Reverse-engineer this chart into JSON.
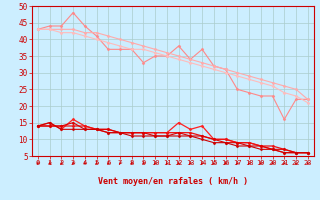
{
  "title": "",
  "xlabel": "Vent moyen/en rafales ( km/h )",
  "ylabel": "",
  "background_color": "#cceeff",
  "grid_color": "#aacccc",
  "xlim": [
    -0.5,
    23.5
  ],
  "ylim": [
    5,
    50
  ],
  "yticks": [
    5,
    10,
    15,
    20,
    25,
    30,
    35,
    40,
    45,
    50
  ],
  "xticks": [
    0,
    1,
    2,
    3,
    4,
    5,
    6,
    7,
    8,
    9,
    10,
    11,
    12,
    13,
    14,
    15,
    16,
    17,
    18,
    19,
    20,
    21,
    22,
    23
  ],
  "lines_light": [
    {
      "x": [
        0,
        1,
        2,
        3,
        4,
        5,
        6,
        7,
        8,
        9,
        10,
        11,
        12,
        13,
        14,
        15,
        16,
        17,
        18,
        19,
        20,
        21,
        22,
        23
      ],
      "y": [
        43,
        44,
        44,
        48,
        44,
        41,
        37,
        37,
        37,
        33,
        35,
        35,
        38,
        34,
        37,
        32,
        31,
        25,
        24,
        23,
        23,
        16,
        22,
        22
      ],
      "color": "#ff8888",
      "lw": 0.8
    },
    {
      "x": [
        0,
        1,
        2,
        3,
        4,
        5,
        6,
        7,
        8,
        9,
        10,
        11,
        12,
        13,
        14,
        15,
        16,
        17,
        18,
        19,
        20,
        21,
        22,
        23
      ],
      "y": [
        43,
        43,
        43,
        43,
        42,
        42,
        41,
        40,
        39,
        38,
        37,
        36,
        35,
        34,
        33,
        32,
        31,
        30,
        29,
        28,
        27,
        26,
        25,
        22
      ],
      "color": "#ffaaaa",
      "lw": 0.8
    },
    {
      "x": [
        0,
        1,
        2,
        3,
        4,
        5,
        6,
        7,
        8,
        9,
        10,
        11,
        12,
        13,
        14,
        15,
        16,
        17,
        18,
        19,
        20,
        21,
        22,
        23
      ],
      "y": [
        43,
        43,
        42,
        42,
        41,
        40,
        39,
        38,
        37,
        37,
        36,
        35,
        34,
        33,
        32,
        31,
        30,
        29,
        28,
        27,
        26,
        24,
        23,
        21
      ],
      "color": "#ffbbbb",
      "lw": 0.8
    }
  ],
  "lines_dark": [
    {
      "x": [
        0,
        1,
        2,
        3,
        4,
        5,
        6,
        7,
        8,
        9,
        10,
        11,
        12,
        13,
        14,
        15,
        16,
        17,
        18,
        19,
        20,
        21,
        22,
        23
      ],
      "y": [
        14,
        15,
        13,
        16,
        14,
        13,
        12,
        12,
        12,
        12,
        12,
        12,
        15,
        13,
        14,
        10,
        10,
        9,
        9,
        8,
        7,
        6,
        6,
        6
      ],
      "color": "#ff2222",
      "lw": 0.9
    },
    {
      "x": [
        0,
        1,
        2,
        3,
        4,
        5,
        6,
        7,
        8,
        9,
        10,
        11,
        12,
        13,
        14,
        15,
        16,
        17,
        18,
        19,
        20,
        21,
        22,
        23
      ],
      "y": [
        14,
        14,
        14,
        14,
        14,
        13,
        13,
        12,
        12,
        12,
        12,
        12,
        12,
        12,
        11,
        10,
        10,
        9,
        9,
        8,
        8,
        7,
        6,
        6
      ],
      "color": "#ee1111",
      "lw": 0.9
    },
    {
      "x": [
        0,
        1,
        2,
        3,
        4,
        5,
        6,
        7,
        8,
        9,
        10,
        11,
        12,
        13,
        14,
        15,
        16,
        17,
        18,
        19,
        20,
        21,
        22,
        23
      ],
      "y": [
        14,
        14,
        14,
        15,
        13,
        13,
        13,
        12,
        12,
        12,
        11,
        11,
        12,
        11,
        11,
        10,
        9,
        9,
        8,
        8,
        7,
        7,
        6,
        6
      ],
      "color": "#dd0000",
      "lw": 0.8
    },
    {
      "x": [
        0,
        1,
        2,
        3,
        4,
        5,
        6,
        7,
        8,
        9,
        10,
        11,
        12,
        13,
        14,
        15,
        16,
        17,
        18,
        19,
        20,
        21,
        22,
        23
      ],
      "y": [
        14,
        15,
        13,
        13,
        13,
        13,
        12,
        12,
        11,
        11,
        11,
        11,
        11,
        11,
        10,
        9,
        9,
        8,
        8,
        7,
        7,
        6,
        6,
        6
      ],
      "color": "#cc0000",
      "lw": 0.8
    }
  ],
  "marker": "D",
  "markersize": 1.5,
  "axis_label_color": "#cc0000",
  "tick_label_color": "#cc0000",
  "arrow_color": "#cc0000"
}
